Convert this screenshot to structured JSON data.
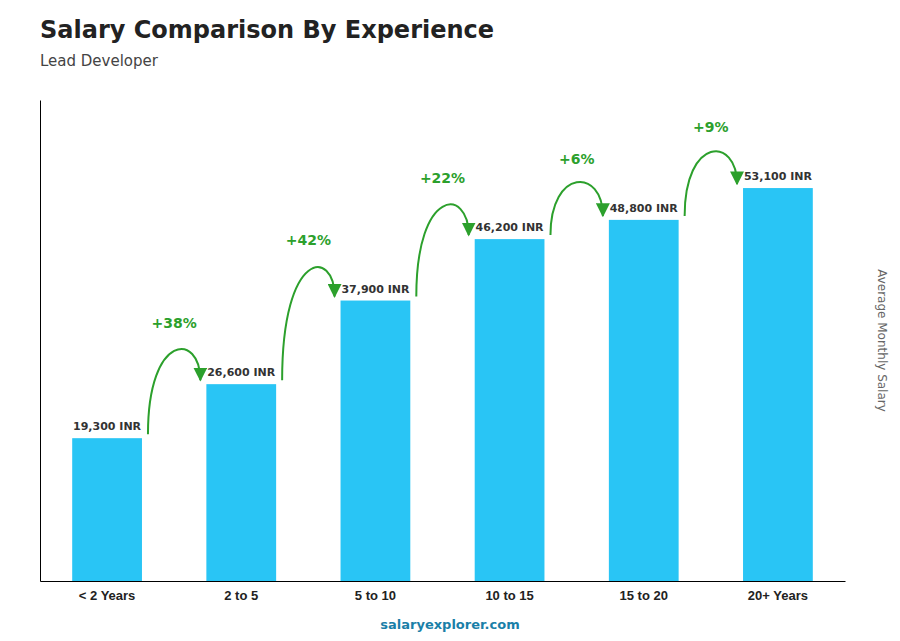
{
  "chart_data": {
    "type": "bar",
    "title": "Salary Comparison By Experience",
    "subtitle": "Lead Developer",
    "categories": [
      "< 2 Years",
      "2 to 5",
      "5 to 10",
      "10 to 15",
      "15 to 20",
      "20+ Years"
    ],
    "values": [
      19300,
      26600,
      37900,
      46200,
      48800,
      53100
    ],
    "value_labels": [
      "19,300 INR",
      "26,600 INR",
      "37,900 INR",
      "46,200 INR",
      "48,800 INR",
      "53,100 INR"
    ],
    "data_labels": true,
    "annotations": [
      "+38%",
      "+42%",
      "+22%",
      "+6%",
      "+9%"
    ],
    "ylabel": "Average Monthly Salary",
    "footer": "salaryexplorer.com",
    "color": "#29c5f5",
    "ylim": [
      0,
      65000
    ],
    "tick_labels": "x",
    "grid": false
  }
}
